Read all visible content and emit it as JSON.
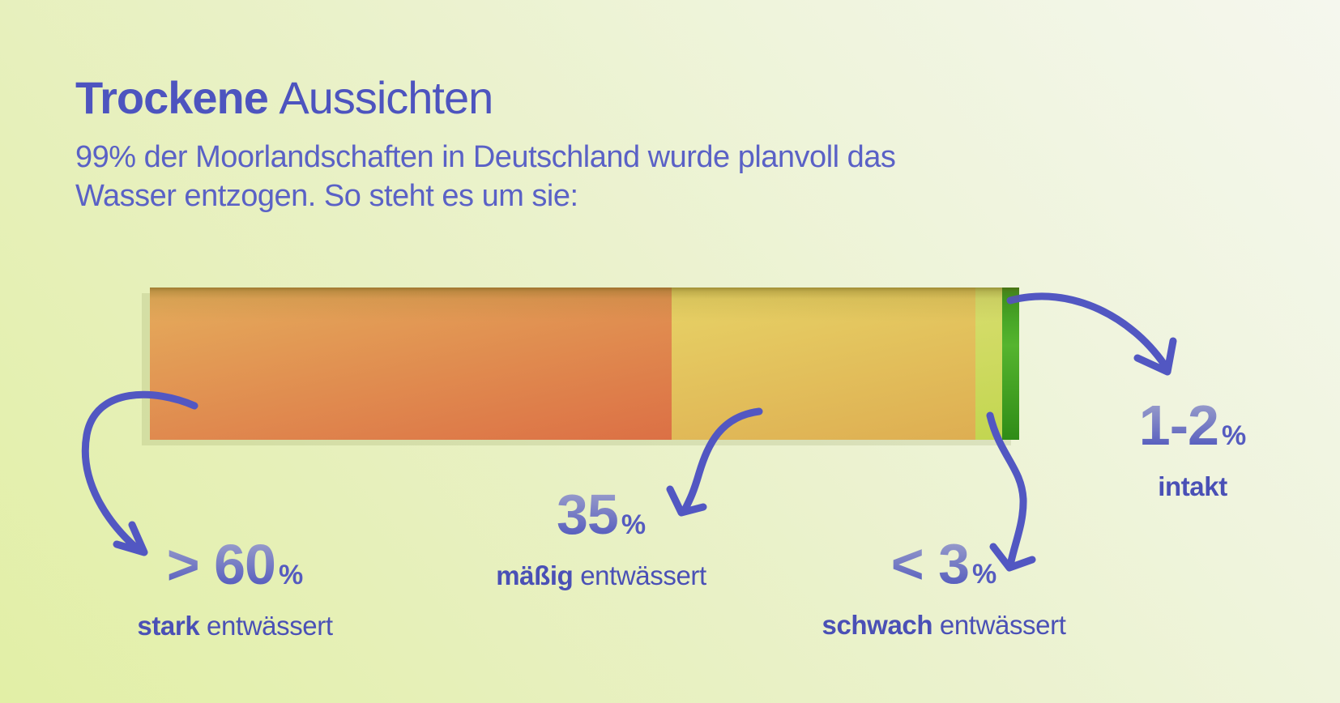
{
  "header": {
    "title_bold": "Trockene",
    "title_regular": "Aussichten",
    "subtitle_line1": "99% der Moorlandschaften in Deutschland wurde planvoll das",
    "subtitle_line2": "Wasser entzogen. So steht es um sie:"
  },
  "colors": {
    "accent": "#5257c2",
    "title": "#4d54bf",
    "subtitle": "#5a61c6",
    "num-top": "#a6aacd",
    "num-bottom": "#4f56bd",
    "pct": "#555bc0",
    "label": "#4a50b6"
  },
  "chart_data": {
    "type": "bar",
    "variant": "horizontal-stacked-single-bar",
    "title": "Trockene Aussichten",
    "subtitle": "99% der Moorlandschaften in Deutschland wurde planvoll das Wasser entzogen. So steht es um sie:",
    "unit": "%",
    "axes": "none",
    "legend": "none",
    "segments": [
      {
        "id": "stark",
        "value_label": "> 60",
        "value_pct": 60,
        "label_bold": "stark",
        "label_rest": " entwässert",
        "color_top": "#e5ad5c",
        "color_bottom": "#dc7045"
      },
      {
        "id": "maessig",
        "value_label": "35",
        "value_pct": 35,
        "label_bold": "mäßig",
        "label_rest": " entwässert",
        "color_top": "#e7d366",
        "color_bottom": "#deae52"
      },
      {
        "id": "schwach",
        "value_label": "< 3",
        "value_pct": 3,
        "label_bold": "schwach",
        "label_rest": " entwässert",
        "color_top": "#d8dd6e",
        "color_bottom": "#c2d650"
      },
      {
        "id": "intakt",
        "value_label": "1-2",
        "value_pct": 2,
        "label_bold": "intakt",
        "label_rest": "",
        "color_top": "#36951d",
        "color_mid": "#55b42e",
        "color_bottom": "#2f8c17"
      }
    ]
  }
}
